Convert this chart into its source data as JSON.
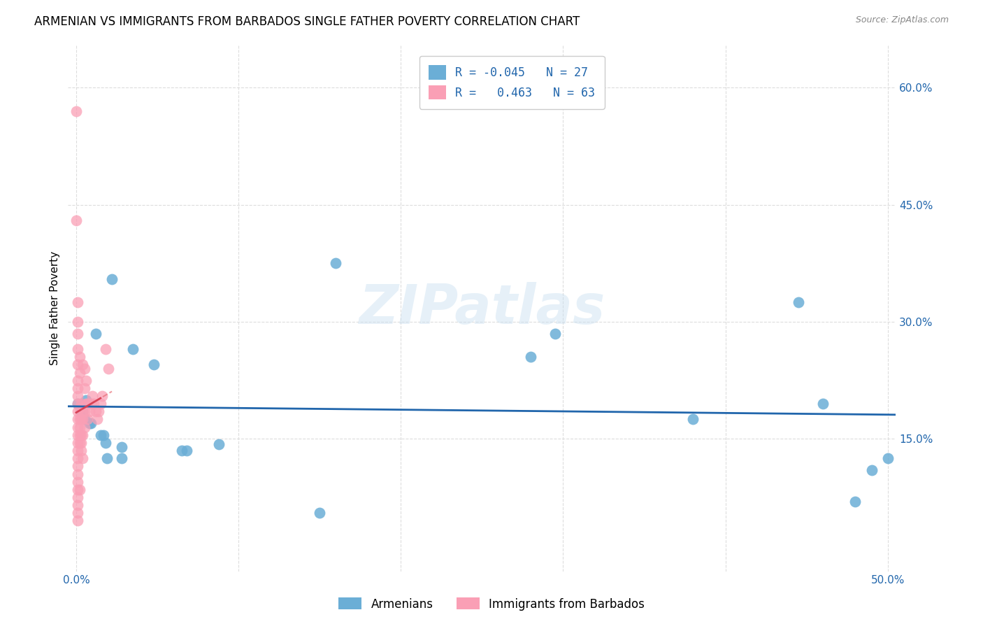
{
  "title": "ARMENIAN VS IMMIGRANTS FROM BARBADOS SINGLE FATHER POVERTY CORRELATION CHART",
  "source": "Source: ZipAtlas.com",
  "ylabel": "Single Father Poverty",
  "watermark": "ZIPatlas",
  "legend_blue_r": "-0.045",
  "legend_blue_n": "27",
  "legend_pink_r": "0.463",
  "legend_pink_n": "63",
  "legend_blue_label": "Armenians",
  "legend_pink_label": "Immigrants from Barbados",
  "xlim": [
    -0.005,
    0.505
  ],
  "ylim": [
    -0.02,
    0.655
  ],
  "xticks": [
    0.0,
    0.1,
    0.2,
    0.3,
    0.4,
    0.5
  ],
  "xtick_labels": [
    "0.0%",
    "",
    "",
    "",
    "",
    "50.0%"
  ],
  "ytick_right_vals": [
    0.15,
    0.3,
    0.45,
    0.6
  ],
  "ytick_right_labels": [
    "15.0%",
    "30.0%",
    "45.0%",
    "60.0%"
  ],
  "blue_color": "#6baed6",
  "pink_color": "#fa9fb5",
  "trendline_blue_color": "#2166ac",
  "trendline_pink_color": "#e8727a",
  "blue_scatter": [
    [
      0.001,
      0.195
    ],
    [
      0.003,
      0.195
    ],
    [
      0.003,
      0.185
    ],
    [
      0.004,
      0.185
    ],
    [
      0.005,
      0.175
    ],
    [
      0.006,
      0.2
    ],
    [
      0.008,
      0.17
    ],
    [
      0.009,
      0.17
    ],
    [
      0.012,
      0.285
    ],
    [
      0.015,
      0.155
    ],
    [
      0.017,
      0.155
    ],
    [
      0.018,
      0.145
    ],
    [
      0.019,
      0.125
    ],
    [
      0.022,
      0.355
    ],
    [
      0.028,
      0.125
    ],
    [
      0.028,
      0.14
    ],
    [
      0.035,
      0.265
    ],
    [
      0.048,
      0.245
    ],
    [
      0.065,
      0.135
    ],
    [
      0.068,
      0.135
    ],
    [
      0.088,
      0.143
    ],
    [
      0.16,
      0.375
    ],
    [
      0.28,
      0.255
    ],
    [
      0.295,
      0.285
    ],
    [
      0.38,
      0.175
    ],
    [
      0.445,
      0.325
    ],
    [
      0.46,
      0.195
    ]
  ],
  "blue_scatter_low": [
    [
      0.48,
      0.07
    ],
    [
      0.49,
      0.11
    ],
    [
      0.5,
      0.125
    ],
    [
      0.15,
      0.055
    ]
  ],
  "pink_scatter": [
    [
      0.0,
      0.57
    ],
    [
      0.0,
      0.43
    ],
    [
      0.001,
      0.325
    ],
    [
      0.001,
      0.3
    ],
    [
      0.001,
      0.285
    ],
    [
      0.001,
      0.265
    ],
    [
      0.001,
      0.245
    ],
    [
      0.001,
      0.225
    ],
    [
      0.001,
      0.215
    ],
    [
      0.001,
      0.205
    ],
    [
      0.001,
      0.195
    ],
    [
      0.001,
      0.185
    ],
    [
      0.001,
      0.175
    ],
    [
      0.001,
      0.165
    ],
    [
      0.001,
      0.155
    ],
    [
      0.001,
      0.145
    ],
    [
      0.001,
      0.135
    ],
    [
      0.001,
      0.125
    ],
    [
      0.001,
      0.115
    ],
    [
      0.001,
      0.105
    ],
    [
      0.001,
      0.095
    ],
    [
      0.001,
      0.085
    ],
    [
      0.001,
      0.075
    ],
    [
      0.001,
      0.065
    ],
    [
      0.001,
      0.055
    ],
    [
      0.001,
      0.045
    ],
    [
      0.002,
      0.255
    ],
    [
      0.002,
      0.235
    ],
    [
      0.002,
      0.19
    ],
    [
      0.002,
      0.175
    ],
    [
      0.002,
      0.165
    ],
    [
      0.002,
      0.155
    ],
    [
      0.002,
      0.145
    ],
    [
      0.002,
      0.085
    ],
    [
      0.003,
      0.195
    ],
    [
      0.003,
      0.175
    ],
    [
      0.003,
      0.155
    ],
    [
      0.003,
      0.145
    ],
    [
      0.003,
      0.135
    ],
    [
      0.004,
      0.245
    ],
    [
      0.004,
      0.185
    ],
    [
      0.004,
      0.175
    ],
    [
      0.004,
      0.155
    ],
    [
      0.004,
      0.125
    ],
    [
      0.005,
      0.24
    ],
    [
      0.005,
      0.215
    ],
    [
      0.005,
      0.185
    ],
    [
      0.005,
      0.165
    ],
    [
      0.006,
      0.225
    ],
    [
      0.006,
      0.195
    ],
    [
      0.007,
      0.195
    ],
    [
      0.007,
      0.175
    ],
    [
      0.008,
      0.185
    ],
    [
      0.009,
      0.195
    ],
    [
      0.01,
      0.205
    ],
    [
      0.011,
      0.195
    ],
    [
      0.012,
      0.185
    ],
    [
      0.013,
      0.175
    ],
    [
      0.014,
      0.185
    ],
    [
      0.015,
      0.195
    ],
    [
      0.016,
      0.205
    ],
    [
      0.018,
      0.265
    ],
    [
      0.02,
      0.24
    ]
  ],
  "grid_color": "#dddddd",
  "background_color": "#ffffff",
  "title_fontsize": 12,
  "axis_label_fontsize": 11,
  "tick_fontsize": 11
}
